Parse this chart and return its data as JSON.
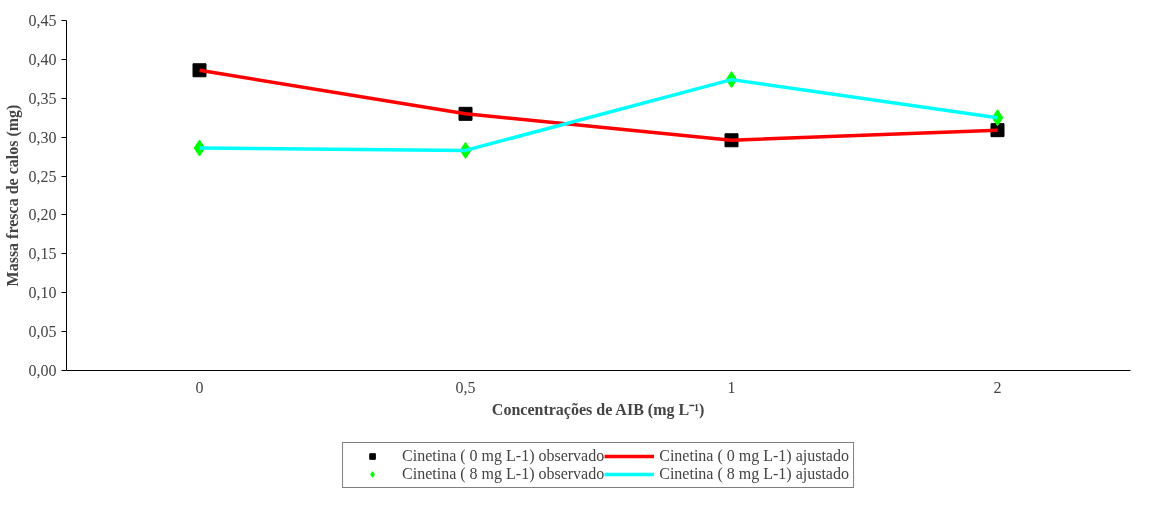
{
  "chart_data": {
    "type": "line",
    "xlabel": "Concentrações de AIB (mg L⁻¹)",
    "ylabel": "Massa fresca de calos (mg)",
    "categories": [
      "0",
      "0,5",
      "1",
      "2"
    ],
    "series": [
      {
        "name": "Cinetina ( 0 mg L-1) observado",
        "type": "scatter",
        "marker": "square",
        "color": "#000000",
        "values": [
          0.386,
          0.33,
          0.296,
          0.309
        ]
      },
      {
        "name": "Cinetina ( 0 mg L-1) ajustado",
        "color": "#ff0000",
        "values": [
          0.386,
          0.33,
          0.296,
          0.309
        ]
      },
      {
        "name": "Cinetina ( 8 mg L-1) observado",
        "type": "scatter",
        "marker": "diamond",
        "color": "#00ff00",
        "values": [
          0.286,
          0.283,
          0.374,
          0.325
        ]
      },
      {
        "name": "Cinetina ( 8 mg L-1) ajustado",
        "color": "#00ffff",
        "values": [
          0.286,
          0.283,
          0.374,
          0.325
        ]
      }
    ],
    "ylim": [
      0,
      0.45
    ],
    "yticks": [
      {
        "value": 0,
        "label": "0,00"
      },
      {
        "value": 0.05,
        "label": "0,05"
      },
      {
        "value": 0.1,
        "label": "0,10"
      },
      {
        "value": 0.15,
        "label": "0,15"
      },
      {
        "value": 0.2,
        "label": "0,20"
      },
      {
        "value": 0.25,
        "label": "0,25"
      },
      {
        "value": 0.3,
        "label": "0,30"
      },
      {
        "value": 0.35,
        "label": "0,35"
      },
      {
        "value": 0.4,
        "label": "0,40"
      },
      {
        "value": 0.45,
        "label": "0,45"
      }
    ],
    "grid": false,
    "legend": "bottom"
  }
}
